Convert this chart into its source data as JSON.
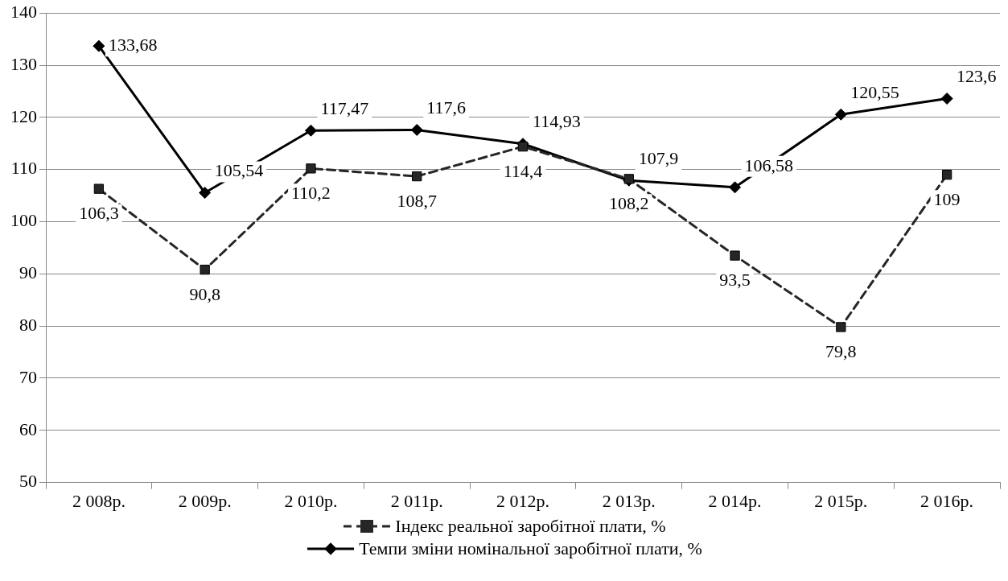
{
  "chart_data": {
    "type": "line",
    "categories": [
      "2 008р.",
      "2 009р.",
      "2 010р.",
      "2 011р.",
      "2 012р.",
      "2 013р.",
      "2 014р.",
      "2 015р.",
      "2 016р."
    ],
    "series": [
      {
        "name": "Індекс реальної заробітної плати, %",
        "color": "#262626",
        "line_style": "dashed",
        "marker": "square",
        "values": [
          106.3,
          90.8,
          110.2,
          108.7,
          114.4,
          108.2,
          93.5,
          79.8,
          109
        ],
        "value_labels": [
          "106,3",
          "90,8",
          "110,2",
          "108,7",
          "114,4",
          "108,2",
          "93,5",
          "79,8",
          "109"
        ]
      },
      {
        "name": "Темпи зміни номінальної заробітної плати, %",
        "color": "#000000",
        "line_style": "solid",
        "marker": "diamond",
        "values": [
          133.68,
          105.54,
          117.47,
          117.6,
          114.93,
          107.9,
          106.58,
          120.55,
          123.6
        ],
        "value_labels": [
          "133,68",
          "105,54",
          "117,47",
          "117,6",
          "114,93",
          "107,9",
          "106,58",
          "120,55",
          "123,6"
        ]
      }
    ],
    "ylim": [
      50,
      140
    ],
    "yticks": [
      50,
      60,
      70,
      80,
      90,
      100,
      110,
      120,
      130,
      140
    ],
    "grid": "y",
    "legend": "bottom"
  }
}
